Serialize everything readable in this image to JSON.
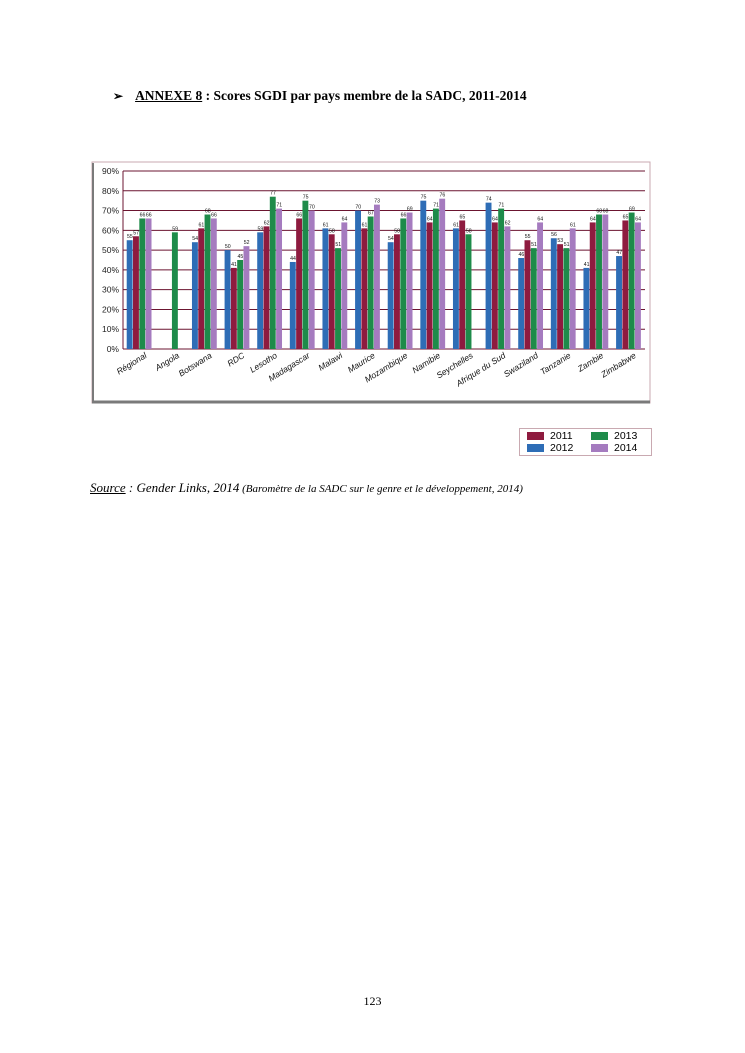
{
  "heading": {
    "bullet": "➢",
    "label": "ANNEXE 8",
    "rest": " : Scores SGDI par pays membre de la SADC, 2011-2014"
  },
  "chart_data": {
    "type": "bar",
    "categories": [
      "Régional",
      "Angola",
      "Botswana",
      "RDC",
      "Lesotho",
      "Madagascar",
      "Malawi",
      "Maurice",
      "Mozambique",
      "Namibie",
      "Seychelles",
      "Afrique du Sud",
      "Swaziland",
      "Tanzanie",
      "Zambie",
      "Zimbabwe"
    ],
    "series": [
      {
        "name": "2012",
        "color": "#2e6db6",
        "values": [
          55,
          null,
          54,
          50,
          59,
          44,
          61,
          70,
          54,
          75,
          61,
          74,
          46,
          56,
          41,
          47
        ]
      },
      {
        "name": "2011",
        "color": "#8e1b3f",
        "values": [
          57,
          null,
          61,
          41,
          62,
          66,
          58,
          61,
          58,
          64,
          65,
          64,
          55,
          53,
          64,
          65
        ]
      },
      {
        "name": "2013",
        "color": "#1e8b4a",
        "values": [
          66,
          59,
          68,
          45,
          77,
          75,
          51,
          67,
          66,
          71,
          58,
          71,
          51,
          51,
          68,
          69
        ]
      },
      {
        "name": "2014",
        "color": "#a57bbf",
        "values": [
          66,
          null,
          66,
          52,
          71,
          70,
          64,
          73,
          69,
          76,
          null,
          62,
          64,
          61,
          68,
          64
        ]
      }
    ],
    "ylim": [
      0,
      90
    ],
    "yticks": [
      "0%",
      "10%",
      "20%",
      "30%",
      "40%",
      "50%",
      "60%",
      "70%",
      "80%",
      "90%"
    ],
    "legend_order": [
      "2011",
      "2013",
      "2012",
      "2014"
    ],
    "legend_placement": "bottom-right",
    "grid": true
  },
  "source": {
    "label": "Source",
    "text": " : Gender Links, 2014",
    "detail": " (Baromètre de la SADC sur le genre et le développement, 2014)"
  },
  "page_number": "123"
}
